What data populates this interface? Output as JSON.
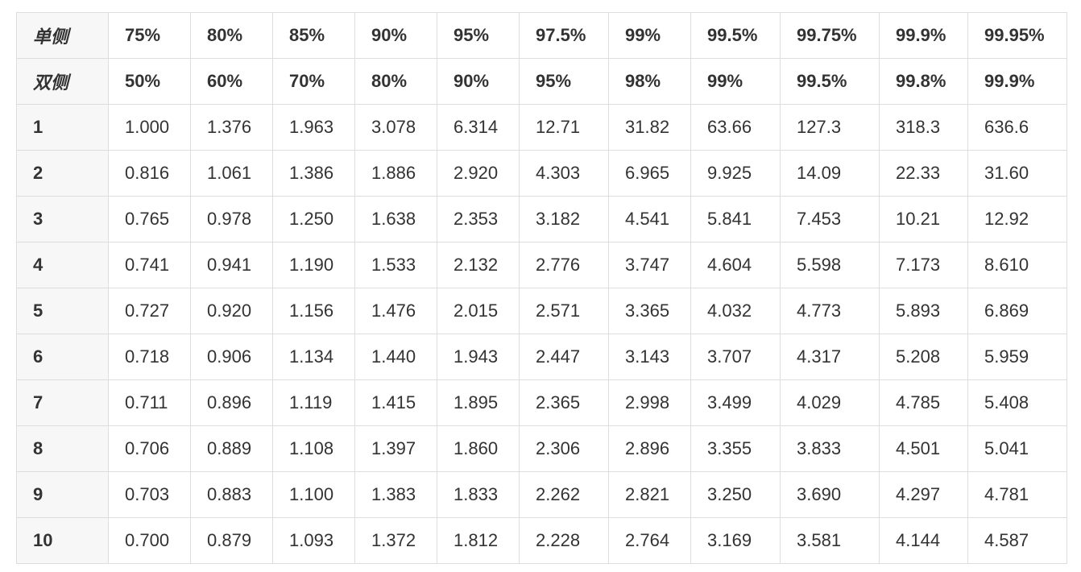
{
  "table": {
    "header_rows": [
      {
        "label": "单侧",
        "values": [
          "75%",
          "80%",
          "85%",
          "90%",
          "95%",
          "97.5%",
          "99%",
          "99.5%",
          "99.75%",
          "99.9%",
          "99.95%"
        ]
      },
      {
        "label": "双侧",
        "values": [
          "50%",
          "60%",
          "70%",
          "80%",
          "90%",
          "95%",
          "98%",
          "99%",
          "99.5%",
          "99.8%",
          "99.9%"
        ]
      }
    ],
    "rows": [
      {
        "label": "1",
        "values": [
          "1.000",
          "1.376",
          "1.963",
          "3.078",
          "6.314",
          "12.71",
          "31.82",
          "63.66",
          "127.3",
          "318.3",
          "636.6"
        ]
      },
      {
        "label": "2",
        "values": [
          "0.816",
          "1.061",
          "1.386",
          "1.886",
          "2.920",
          "4.303",
          "6.965",
          "9.925",
          "14.09",
          "22.33",
          "31.60"
        ]
      },
      {
        "label": "3",
        "values": [
          "0.765",
          "0.978",
          "1.250",
          "1.638",
          "2.353",
          "3.182",
          "4.541",
          "5.841",
          "7.453",
          "10.21",
          "12.92"
        ]
      },
      {
        "label": "4",
        "values": [
          "0.741",
          "0.941",
          "1.190",
          "1.533",
          "2.132",
          "2.776",
          "3.747",
          "4.604",
          "5.598",
          "7.173",
          "8.610"
        ]
      },
      {
        "label": "5",
        "values": [
          "0.727",
          "0.920",
          "1.156",
          "1.476",
          "2.015",
          "2.571",
          "3.365",
          "4.032",
          "4.773",
          "5.893",
          "6.869"
        ]
      },
      {
        "label": "6",
        "values": [
          "0.718",
          "0.906",
          "1.134",
          "1.440",
          "1.943",
          "2.447",
          "3.143",
          "3.707",
          "4.317",
          "5.208",
          "5.959"
        ]
      },
      {
        "label": "7",
        "values": [
          "0.711",
          "0.896",
          "1.119",
          "1.415",
          "1.895",
          "2.365",
          "2.998",
          "3.499",
          "4.029",
          "4.785",
          "5.408"
        ]
      },
      {
        "label": "8",
        "values": [
          "0.706",
          "0.889",
          "1.108",
          "1.397",
          "1.860",
          "2.306",
          "2.896",
          "3.355",
          "3.833",
          "4.501",
          "5.041"
        ]
      },
      {
        "label": "9",
        "values": [
          "0.703",
          "0.883",
          "1.100",
          "1.383",
          "1.833",
          "2.262",
          "2.821",
          "3.250",
          "3.690",
          "4.297",
          "4.781"
        ]
      },
      {
        "label": "10",
        "values": [
          "0.700",
          "0.879",
          "1.093",
          "1.372",
          "1.812",
          "2.228",
          "2.764",
          "3.169",
          "3.581",
          "4.144",
          "4.587"
        ]
      }
    ]
  }
}
